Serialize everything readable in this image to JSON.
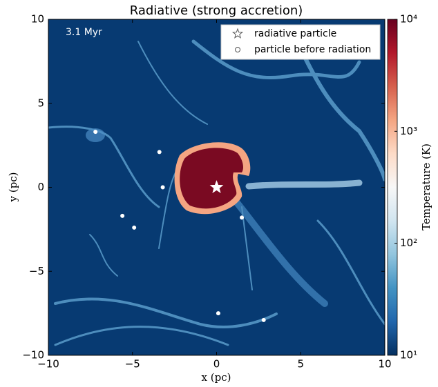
{
  "chart_data": {
    "type": "scatter",
    "title": "Radiative (strong accretion)",
    "annotation": "3.1 Myr",
    "xlabel": "x  (pc)",
    "ylabel": "y  (pc)",
    "xlim": [
      -10,
      10
    ],
    "ylim": [
      -10,
      10
    ],
    "xticks": [
      {
        "value": -10,
        "label": "−10"
      },
      {
        "value": -5,
        "label": "−5"
      },
      0,
      5,
      10
    ],
    "yticks": [
      {
        "value": -10,
        "label": "−10"
      },
      {
        "value": -5,
        "label": "−5"
      },
      0,
      5,
      10
    ],
    "legend": "upper right",
    "series": [
      {
        "name": "radiative particle",
        "color": "#ffffff",
        "marker": "star",
        "x": [
          0
        ],
        "y": [
          0
        ]
      },
      {
        "name": "particle before radiation",
        "color": "#ffffff",
        "marker": "circle",
        "x": [
          -7.2,
          -3.4,
          -3.2,
          -5.6,
          -4.9,
          1.5,
          0.1,
          2.8
        ],
        "y": [
          3.3,
          2.1,
          0.0,
          -1.7,
          -2.4,
          -1.8,
          -7.5,
          -7.9
        ]
      }
    ],
    "colorbar": {
      "label": "Temperature  (K)",
      "log": true,
      "clim": [
        10,
        10000
      ],
      "ticks": [
        {
          "value": 10,
          "label": "10¹"
        },
        {
          "value": 100,
          "label": "10²"
        },
        {
          "value": 1000,
          "label": "10³"
        },
        {
          "value": 10000,
          "label": "10⁴"
        }
      ],
      "colormap": [
        "#053061",
        "#2166ac",
        "#4393c3",
        "#92c5de",
        "#d1e5f0",
        "#f7f7f7",
        "#fddbc7",
        "#f4a582",
        "#d6604d",
        "#b2182b",
        "#67001f"
      ]
    }
  }
}
